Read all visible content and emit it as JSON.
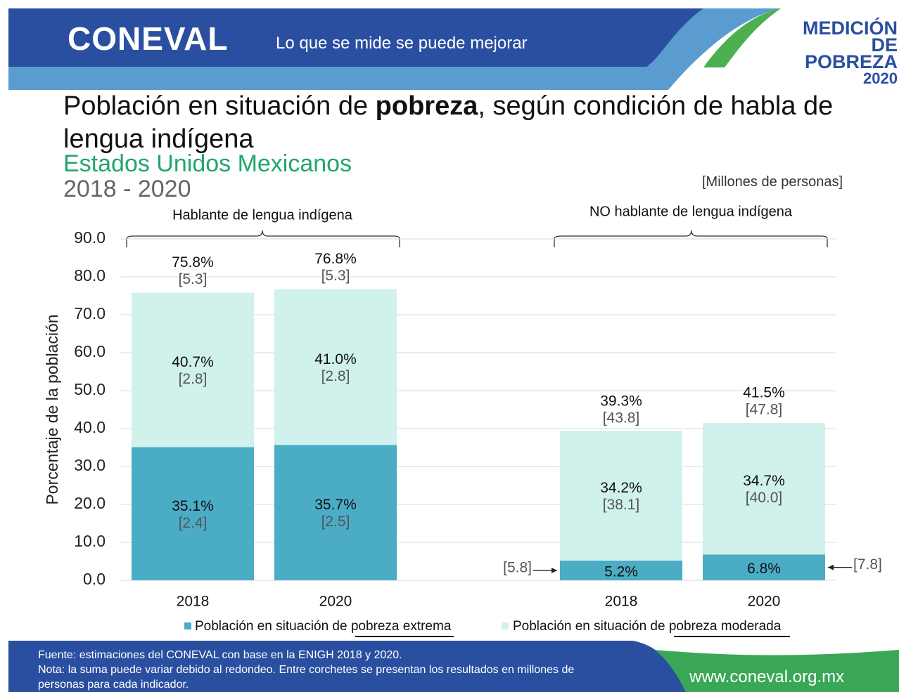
{
  "header": {
    "logo": "CONEVAL",
    "slogan": "Lo que se mide se puede mejorar",
    "badge": [
      "MEDICIÓN",
      "DE POBREZA",
      "2020"
    ]
  },
  "chart_data": {
    "type": "bar",
    "stacked": true,
    "title_parts": [
      "Población en situación de ",
      "pobreza",
      ", según condición de habla de lengua indígena"
    ],
    "subtitle": "Estados Unidos Mexicanos",
    "period": "2018 - 2020",
    "units": "[Millones de personas]",
    "ylabel": "Porcentaje de la población",
    "groups": [
      "Hablante de lengua indígena",
      "NO hablante de lengua indígena"
    ],
    "categories": [
      "2018",
      "2020",
      "2018",
      "2020"
    ],
    "series": [
      {
        "name": "Población en situación de pobreza extrema",
        "color": "#4bacc6",
        "values": [
          35.1,
          35.7,
          5.2,
          6.8
        ],
        "value_labels": [
          "35.1%",
          "35.7%",
          "5.2%",
          "6.8%"
        ],
        "millions_labels": [
          "[2.4]",
          "[2.5]",
          "[5.8]",
          "[7.8]"
        ]
      },
      {
        "name": "Población en situación de pobreza moderada",
        "color": "#d0f1ec",
        "values": [
          40.7,
          41.0,
          34.2,
          34.7
        ],
        "value_labels": [
          "40.7%",
          "41.0%",
          "34.2%",
          "34.7%"
        ],
        "millions_labels": [
          "[2.8]",
          "[2.8]",
          "[38.1]",
          "[40.0]"
        ]
      }
    ],
    "totals": [
      75.8,
      76.8,
      39.3,
      41.5
    ],
    "total_labels": [
      "75.8%",
      "76.8%",
      "39.3%",
      "41.5%"
    ],
    "total_millions_labels": [
      "[5.3]",
      "[5.3]",
      "[43.8]",
      "[47.8]"
    ],
    "ylim": [
      0,
      90
    ],
    "yticks": [
      {
        "value": 0,
        "label": "0.0"
      },
      {
        "value": 10,
        "label": "10.0"
      },
      {
        "value": 20,
        "label": "20.0"
      },
      {
        "value": 30,
        "label": "30.0"
      },
      {
        "value": 40,
        "label": "40.0"
      },
      {
        "value": 50,
        "label": "50.0"
      },
      {
        "value": 60,
        "label": "60.0"
      },
      {
        "value": 70,
        "label": "70.0"
      },
      {
        "value": 80,
        "label": "80.0"
      },
      {
        "value": 90,
        "label": "90.0"
      }
    ],
    "grid": true
  },
  "footer": {
    "source": "Fuente: estimaciones del CONEVAL con base en la ENIGH 2018 y 2020.",
    "note": "Nota: la suma puede variar debido al redondeo. Entre corchetes se presentan los resultados en millones de personas para cada indicador.",
    "url": "www.coneval.org.mx"
  }
}
